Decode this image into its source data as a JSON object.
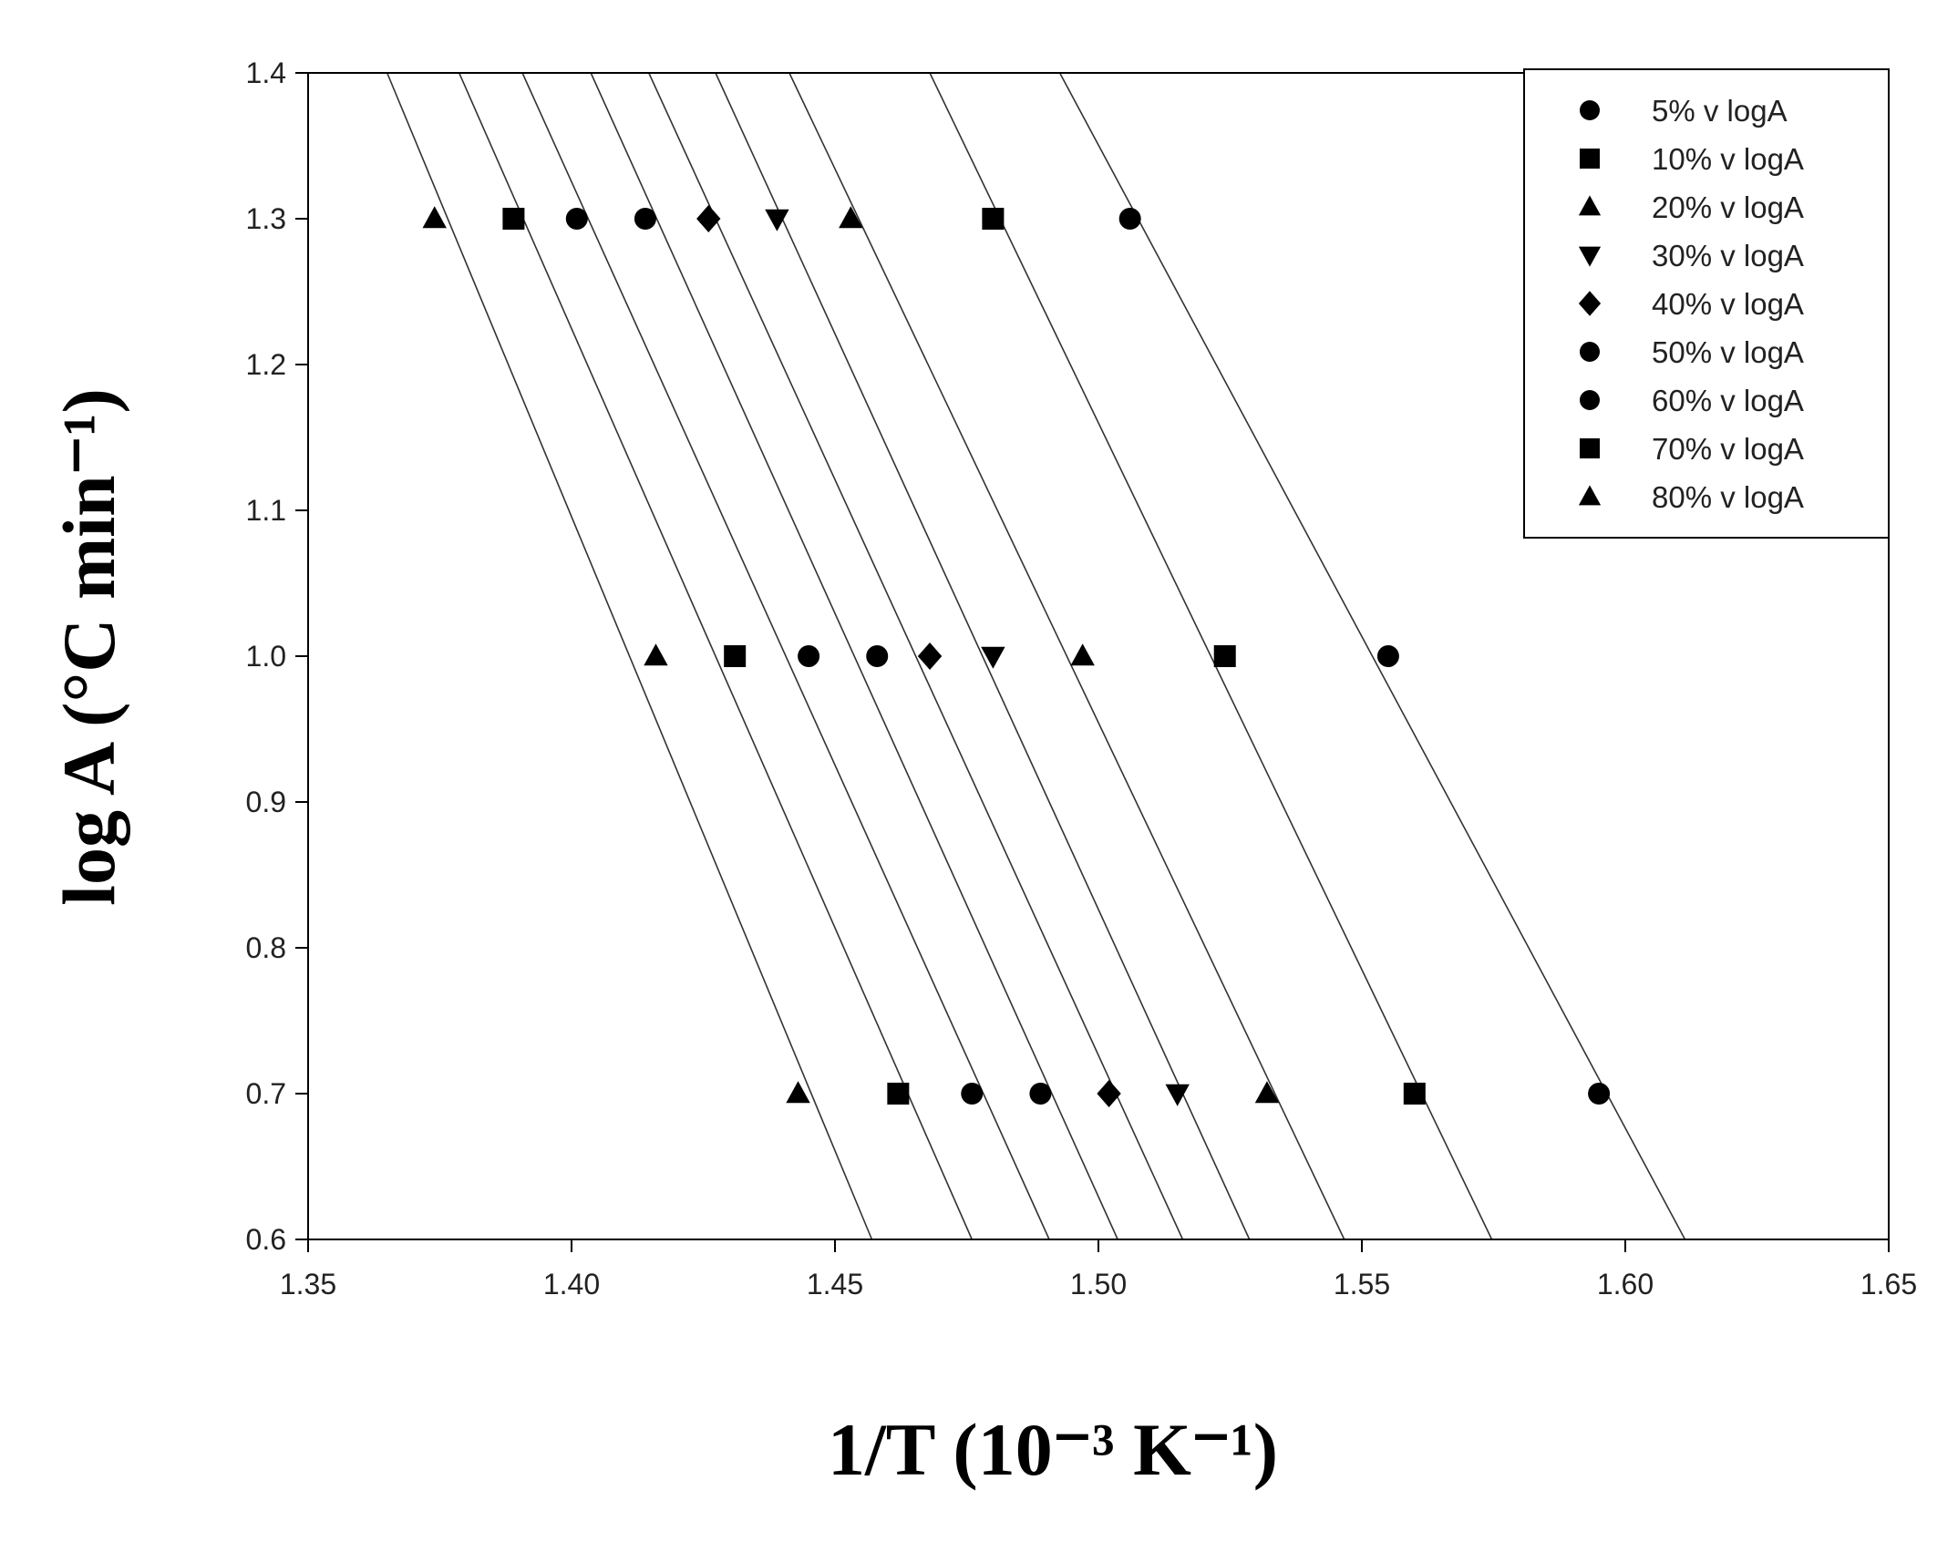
{
  "chart_data": {
    "type": "scatter",
    "title": "",
    "xlabel": "1/T (10⁻³ K⁻¹)",
    "ylabel": "log A (°C min⁻¹)",
    "xlim": [
      1.35,
      1.65
    ],
    "ylim": [
      0.6,
      1.4
    ],
    "x_ticks": [
      "1.35",
      "1.40",
      "1.45",
      "1.50",
      "1.55",
      "1.60",
      "1.65"
    ],
    "y_ticks": [
      "0.6",
      "0.7",
      "0.8",
      "0.9",
      "1.0",
      "1.1",
      "1.2",
      "1.3",
      "1.4"
    ],
    "grid": false,
    "legend_position": "top-right",
    "series": [
      {
        "name": "5% v logA",
        "marker": "circle",
        "x": [
          1.595,
          1.555,
          1.506
        ],
        "y": [
          0.7,
          1.0,
          1.3
        ]
      },
      {
        "name": "10% v logA",
        "marker": "square",
        "x": [
          1.56,
          1.524,
          1.48
        ],
        "y": [
          0.7,
          1.0,
          1.3
        ]
      },
      {
        "name": "20% v logA",
        "marker": "triangle",
        "x": [
          1.532,
          1.497,
          1.453
        ],
        "y": [
          0.7,
          1.0,
          1.3
        ]
      },
      {
        "name": "30% v logA",
        "marker": "triangle-down",
        "x": [
          1.515,
          1.48,
          1.439
        ],
        "y": [
          0.7,
          1.0,
          1.3
        ]
      },
      {
        "name": "40% v logA",
        "marker": "diamond",
        "x": [
          1.502,
          1.468,
          1.426
        ],
        "y": [
          0.7,
          1.0,
          1.3
        ]
      },
      {
        "name": "50% v logA",
        "marker": "circle",
        "x": [
          1.489,
          1.458,
          1.414
        ],
        "y": [
          0.7,
          1.0,
          1.3
        ]
      },
      {
        "name": "60% v logA",
        "marker": "circle",
        "x": [
          1.476,
          1.445,
          1.401
        ],
        "y": [
          0.7,
          1.0,
          1.3
        ]
      },
      {
        "name": "70% v logA",
        "marker": "square",
        "x": [
          1.462,
          1.431,
          1.389
        ],
        "y": [
          0.7,
          1.0,
          1.3
        ]
      },
      {
        "name": "80% v logA",
        "marker": "triangle",
        "x": [
          1.443,
          1.416,
          1.374
        ],
        "y": [
          0.7,
          1.0,
          1.3
        ]
      }
    ]
  }
}
